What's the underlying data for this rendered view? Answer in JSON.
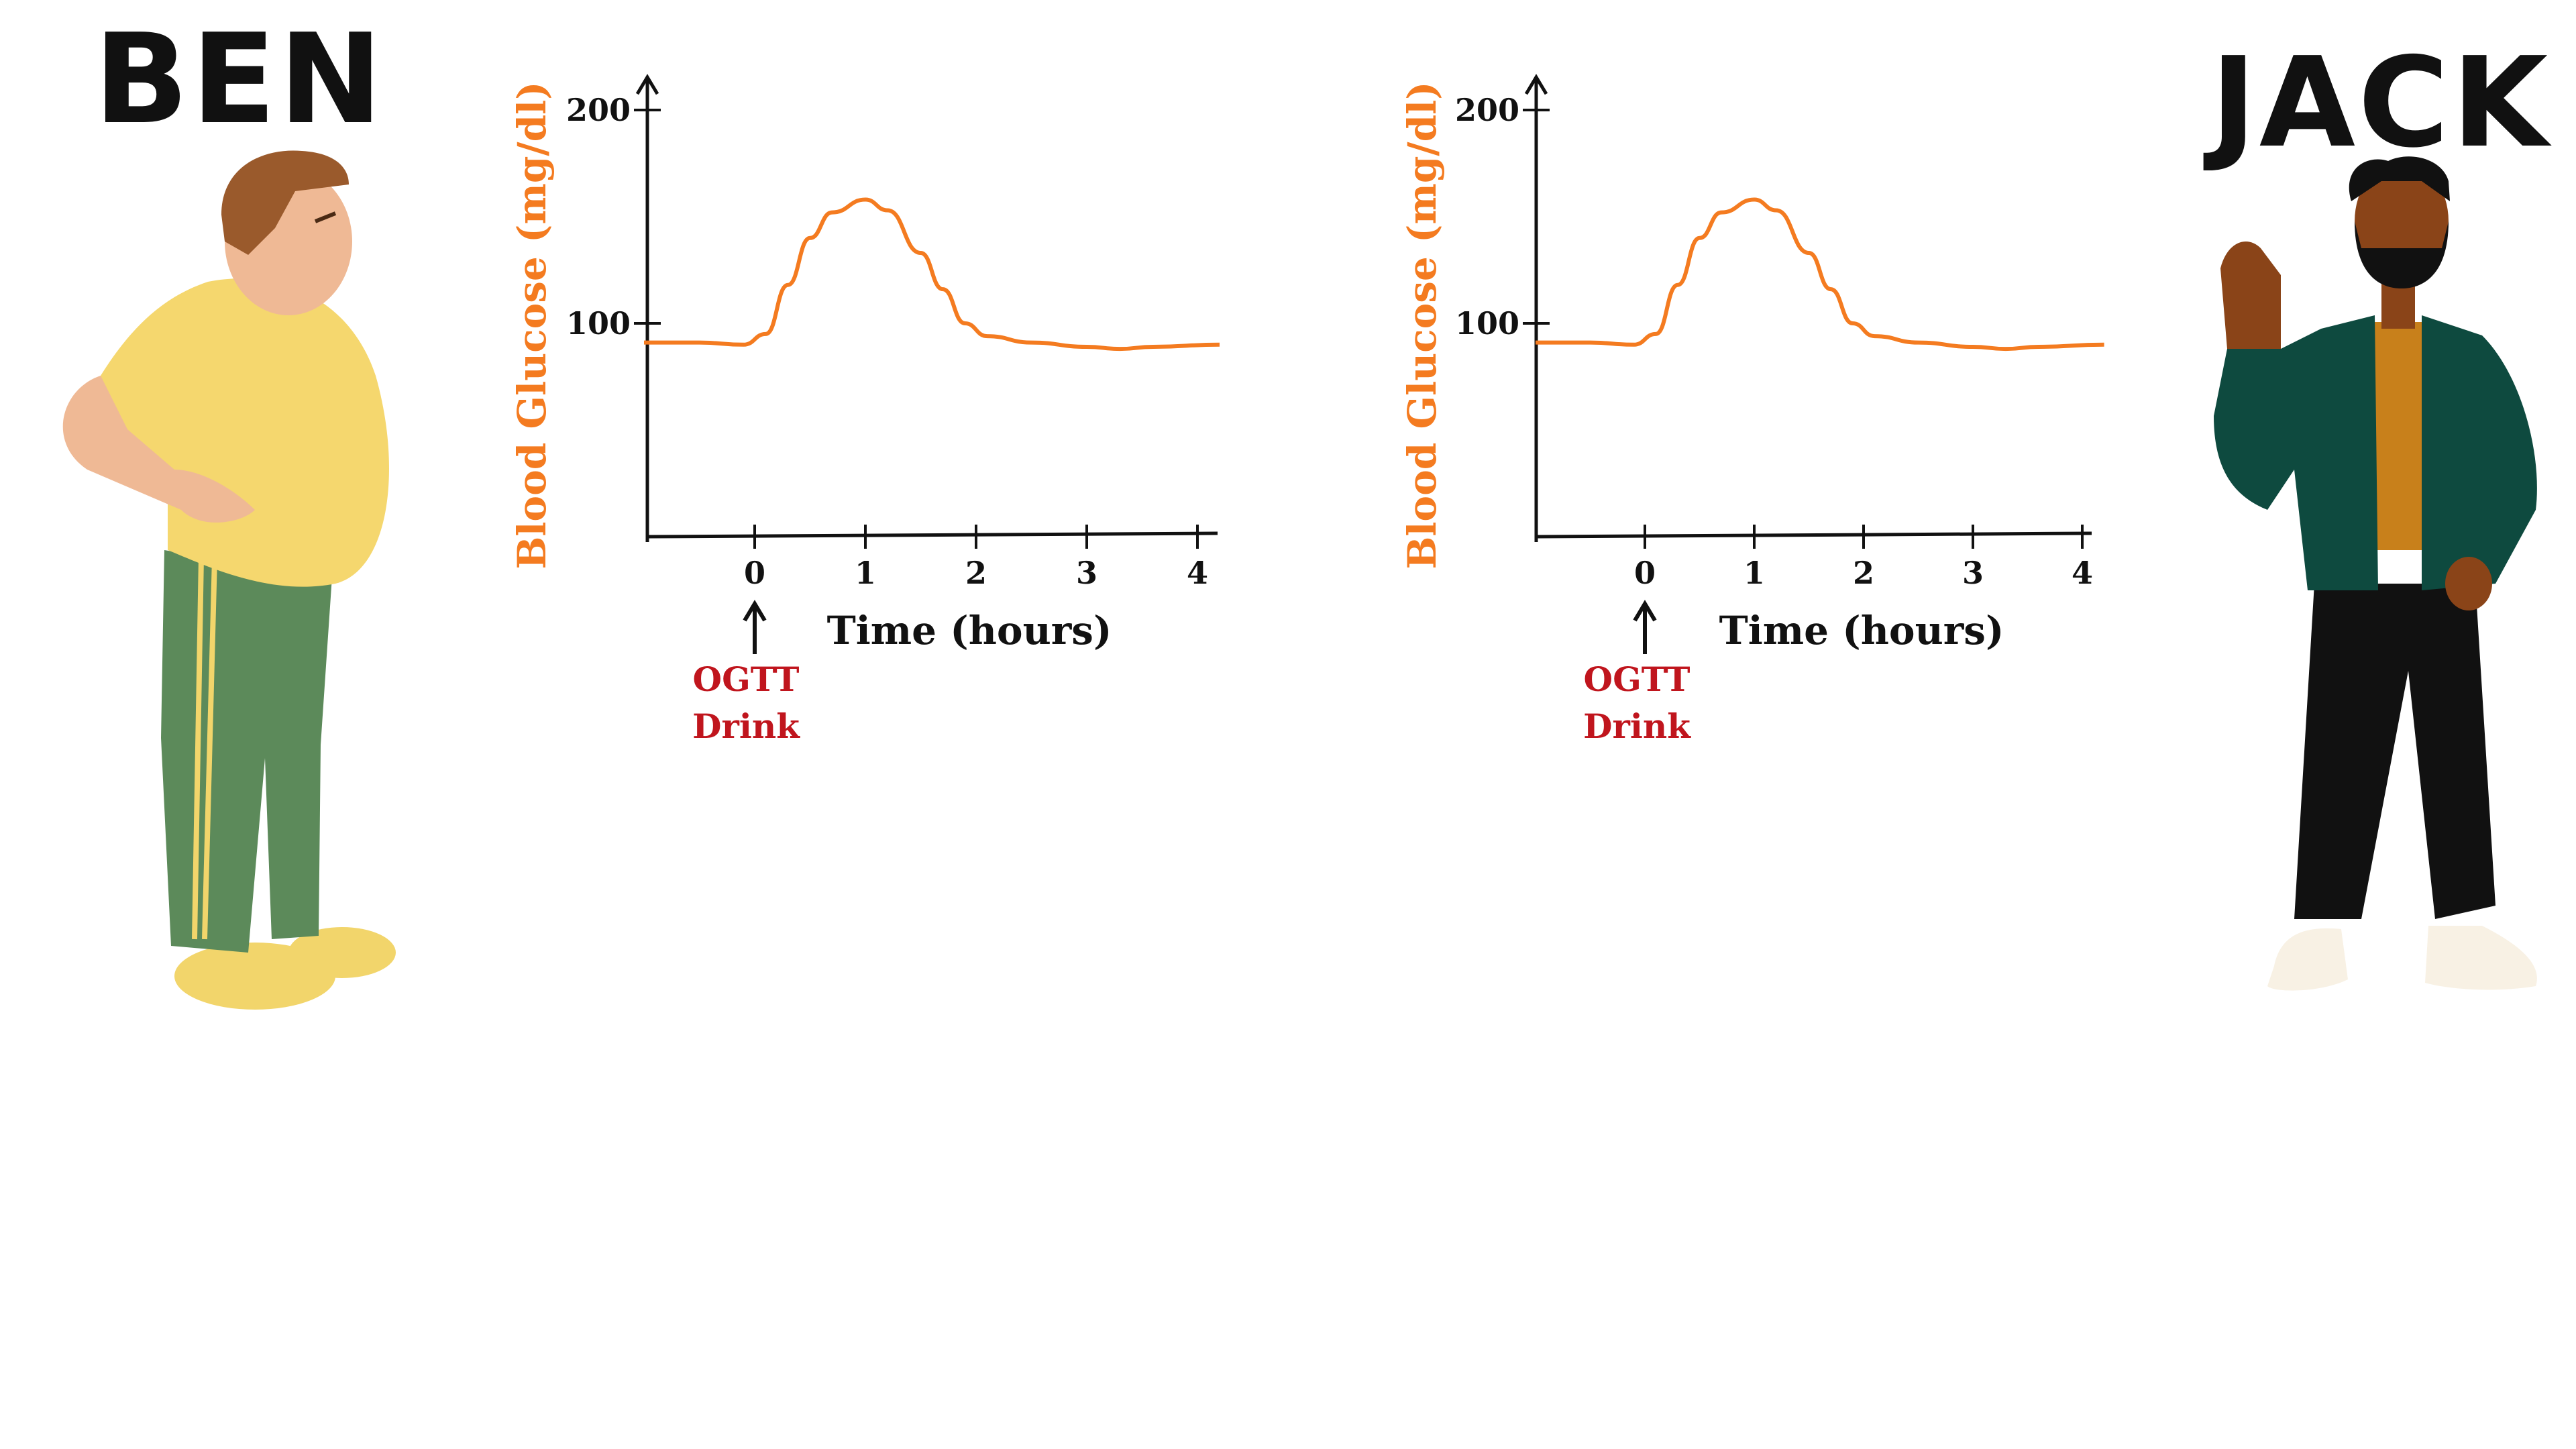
{
  "people": {
    "left": {
      "name": "BEN"
    },
    "right": {
      "name": "JACK"
    }
  },
  "chart_data": [
    {
      "type": "line",
      "title": "",
      "xlabel": "Time (hours)",
      "ylabel": "Blood Glucose (mg/dl)",
      "xlim": [
        -1,
        4.3
      ],
      "ylim": [
        0,
        220
      ],
      "xticks": [
        "0",
        "1",
        "2",
        "3",
        "4"
      ],
      "yticks": [
        "100",
        "200"
      ],
      "annotation": {
        "x": 0,
        "lines": [
          "OGTT",
          "Drink"
        ],
        "color": "#c0151d"
      },
      "line_color": "#f47b20",
      "series": [
        {
          "x": [
            -1,
            -0.5,
            -0.1,
            0.1,
            0.3,
            0.5,
            0.7,
            1.0,
            1.2,
            1.5,
            1.7,
            1.9,
            2.1,
            2.5,
            3.0,
            3.3,
            3.6,
            4.2
          ],
          "y": [
            91,
            91,
            90,
            95,
            118,
            140,
            152,
            158,
            153,
            133,
            116,
            100,
            94,
            91,
            89,
            88,
            89,
            90
          ]
        }
      ]
    },
    {
      "type": "line",
      "title": "",
      "xlabel": "Time (hours)",
      "ylabel": "Blood Glucose (mg/dl)",
      "xlim": [
        -1,
        4.3
      ],
      "ylim": [
        0,
        220
      ],
      "xticks": [
        "0",
        "1",
        "2",
        "3",
        "4"
      ],
      "yticks": [
        "100",
        "200"
      ],
      "annotation": {
        "x": 0,
        "lines": [
          "OGTT",
          "Drink"
        ],
        "color": "#c0151d"
      },
      "line_color": "#f47b20",
      "series": [
        {
          "x": [
            -1,
            -0.5,
            -0.1,
            0.1,
            0.3,
            0.5,
            0.7,
            1.0,
            1.2,
            1.5,
            1.7,
            1.9,
            2.1,
            2.5,
            3.0,
            3.3,
            3.6,
            4.2
          ],
          "y": [
            91,
            91,
            90,
            95,
            118,
            140,
            152,
            158,
            153,
            133,
            116,
            100,
            94,
            91,
            89,
            88,
            89,
            90
          ]
        }
      ]
    }
  ]
}
